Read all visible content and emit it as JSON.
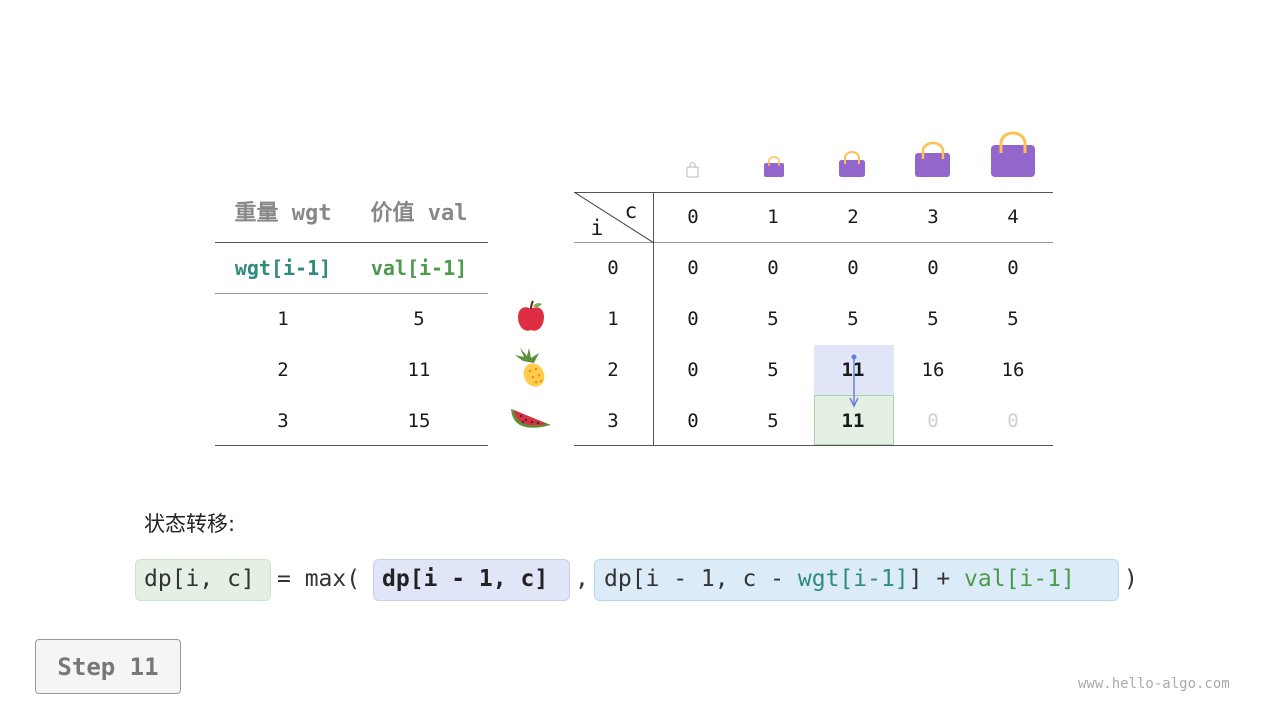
{
  "items_table": {
    "headers": [
      "重量 wgt",
      "价值 val"
    ],
    "subheaders": [
      "wgt[i-1]",
      "val[i-1]"
    ],
    "rows": [
      [
        "1",
        "5"
      ],
      [
        "2",
        "11"
      ],
      [
        "3",
        "15"
      ]
    ],
    "item_icons": [
      "apple-icon",
      "pineapple-icon",
      "watermelon-icon"
    ]
  },
  "dp_table": {
    "corner_row": "i",
    "corner_col": "c",
    "col_headers": [
      "0",
      "1",
      "2",
      "3",
      "4"
    ],
    "row_headers": [
      "0",
      "1",
      "2",
      "3"
    ],
    "cells": [
      [
        "0",
        "0",
        "0",
        "0",
        "0"
      ],
      [
        "0",
        "5",
        "5",
        "5",
        "5"
      ],
      [
        "0",
        "5",
        "11",
        "16",
        "16"
      ],
      [
        "0",
        "5",
        "11",
        "0",
        "0"
      ]
    ],
    "highlight": {
      "source": [
        2,
        2
      ],
      "target": [
        3,
        2
      ]
    },
    "bag_icons": [
      "bag-capacity-0",
      "bag-capacity-1",
      "bag-capacity-2",
      "bag-capacity-3",
      "bag-capacity-4"
    ]
  },
  "transition_label": "状态转移:",
  "formula": {
    "lhs": "dp[i, c]",
    "eq": "= max(",
    "opt1": "dp[i - 1, c]",
    "comma": ",",
    "opt2_a": "dp[i - 1, c - ",
    "opt2_wgt": "wgt[i-1]",
    "opt2_b": "] + ",
    "opt2_val": "val[i-1]",
    "close": ")"
  },
  "step_label": "Step 11",
  "watermark": "www.hello-algo.com",
  "colors": {
    "teal": "#2e8b7d",
    "green": "#4c9a4c",
    "purple": "#9366cc",
    "source_fill": "#e1e5f8",
    "target_fill": "#e3f0e3"
  }
}
